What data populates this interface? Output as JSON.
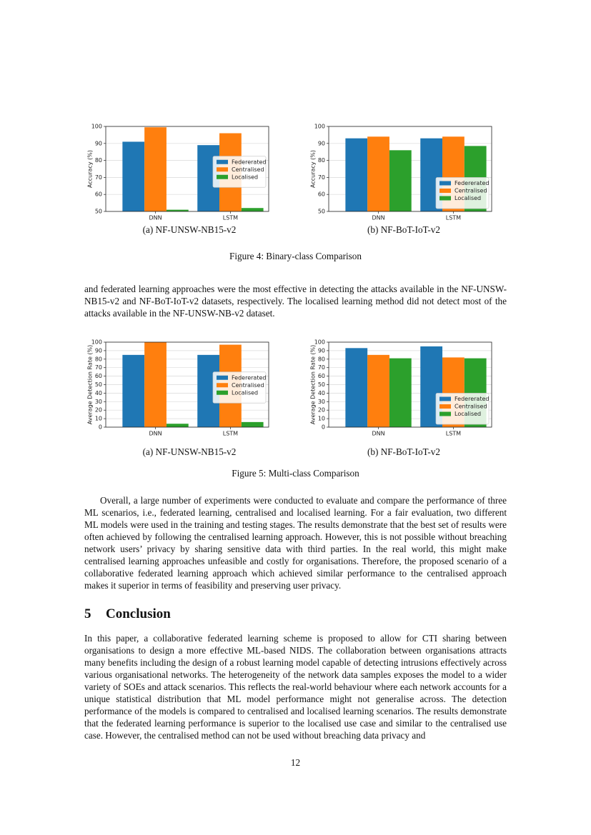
{
  "chart_data": [
    {
      "type": "bar",
      "ylabel": "Accuracy (%)",
      "categories": [
        "DNN",
        "LSTM"
      ],
      "series": [
        {
          "name": "Federerated",
          "color": "#1f77b4",
          "values": [
            91,
            89
          ]
        },
        {
          "name": "Centralised",
          "color": "#ff7f0e",
          "values": [
            99.5,
            96
          ]
        },
        {
          "name": "Localised",
          "color": "#2ca02c",
          "values": [
            51,
            52
          ]
        }
      ],
      "ylim": [
        50,
        100
      ],
      "yticks": [
        50,
        60,
        70,
        80,
        90,
        100
      ],
      "grid": true,
      "legend": "center right"
    },
    {
      "type": "bar",
      "ylabel": "Accuracy (%)",
      "categories": [
        "DNN",
        "LSTM"
      ],
      "series": [
        {
          "name": "Federerated",
          "color": "#1f77b4",
          "values": [
            93,
            93
          ]
        },
        {
          "name": "Centralised",
          "color": "#ff7f0e",
          "values": [
            94,
            94
          ]
        },
        {
          "name": "Localised",
          "color": "#2ca02c",
          "values": [
            86,
            88.5
          ]
        }
      ],
      "ylim": [
        50,
        100
      ],
      "yticks": [
        50,
        60,
        70,
        80,
        90,
        100
      ],
      "grid": true,
      "legend": "lower right"
    },
    {
      "type": "bar",
      "ylabel": "Average Detection Rate (%)",
      "categories": [
        "DNN",
        "LSTM"
      ],
      "series": [
        {
          "name": "Federerated",
          "color": "#1f77b4",
          "values": [
            85,
            85
          ]
        },
        {
          "name": "Centralised",
          "color": "#ff7f0e",
          "values": [
            100,
            97
          ]
        },
        {
          "name": "Localised",
          "color": "#2ca02c",
          "values": [
            4,
            6
          ]
        }
      ],
      "ylim": [
        0,
        100
      ],
      "yticks": [
        0,
        10,
        20,
        30,
        40,
        50,
        60,
        70,
        80,
        90,
        100
      ],
      "grid": true,
      "legend": "center right"
    },
    {
      "type": "bar",
      "ylabel": "Average Detection Rate (%)",
      "categories": [
        "DNN",
        "LSTM"
      ],
      "series": [
        {
          "name": "Federerated",
          "color": "#1f77b4",
          "values": [
            93,
            95
          ]
        },
        {
          "name": "Centralised",
          "color": "#ff7f0e",
          "values": [
            85,
            82
          ]
        },
        {
          "name": "Localised",
          "color": "#2ca02c",
          "values": [
            81,
            81
          ]
        }
      ],
      "ylim": [
        0,
        100
      ],
      "yticks": [
        0,
        10,
        20,
        30,
        40,
        50,
        60,
        70,
        80,
        90,
        100
      ],
      "grid": true,
      "legend": "lower right"
    }
  ],
  "figures": [
    {
      "subcaptions": [
        "(a) NF-UNSW-NB15-v2",
        "(b) NF-BoT-IoT-v2"
      ],
      "caption": "Figure 4: Binary-class Comparison"
    },
    {
      "subcaptions": [
        "(a) NF-UNSW-NB15-v2",
        "(b) NF-BoT-IoT-v2"
      ],
      "caption": "Figure 5: Multi-class Comparison"
    }
  ],
  "paragraphs": [
    "and federated learning approaches were the most effective in detecting the attacks available in the NF-UNSW-NB15-v2 and NF-BoT-IoT-v2 datasets, respectively. The localised learning method did not detect most of the attacks available in the NF-UNSW-NB-v2 dataset.",
    "Overall, a large number of experiments were conducted to evaluate and compare the performance of three ML scenarios, i.e., federated learning, centralised and localised learning. For a fair evaluation, two different ML models were used in the training and testing stages. The results demonstrate that the best set of results were often achieved by following the centralised learning approach. However, this is not possible without breaching network users’ privacy by sharing sensitive data with third parties. In the real world, this might make centralised learning approaches unfeasible and costly for organisations. Therefore, the proposed scenario of a collaborative federated learning approach which achieved similar performance to the centralised approach makes it superior in terms of feasibility and preserving user privacy."
  ],
  "section": {
    "number": "5",
    "title": "Conclusion",
    "paragraph": "In this paper, a collaborative federated learning scheme is proposed to allow for CTI sharing between organisations to design a more effective ML-based NIDS. The collaboration between organisations attracts many benefits including the design of a robust learning model capable of detecting intrusions effectively across various organisational networks. The heterogeneity of the network data samples exposes the model to a wider variety of SOEs and attack scenarios. This reflects the real-world behaviour where each network accounts for a unique statistical distribution that ML model performance might not generalise across. The detection performance of the models is compared to centralised and localised learning scenarios. The results demonstrate that the federated learning performance is superior to the localised use case and similar to the centralised use case. However, the centralised method can not be used without breaching data privacy and"
  },
  "page_number": "12"
}
